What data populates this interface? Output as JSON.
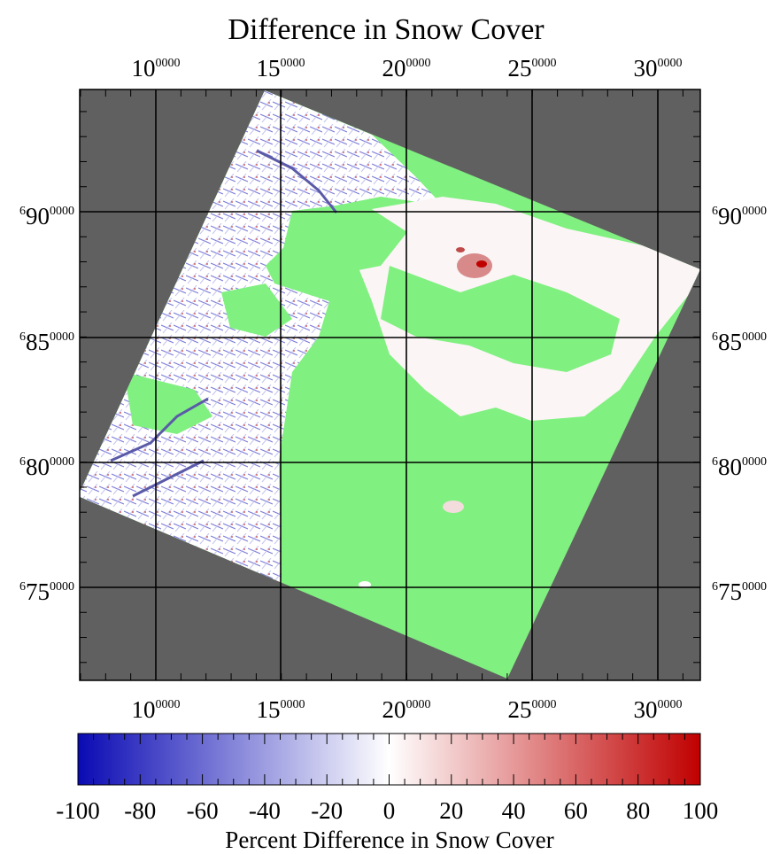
{
  "title": "Difference in Snow Cover",
  "x_ticks": [
    {
      "value": 100000,
      "main": "10",
      "exp": "0000"
    },
    {
      "value": 150000,
      "main": "15",
      "exp": "0000"
    },
    {
      "value": 200000,
      "main": "20",
      "exp": "0000"
    },
    {
      "value": 250000,
      "main": "25",
      "exp": "0000"
    },
    {
      "value": 300000,
      "main": "30",
      "exp": "0000"
    }
  ],
  "y_ticks": [
    {
      "value": 6900000,
      "pre": "6",
      "main": "90",
      "exp": "0000"
    },
    {
      "value": 6850000,
      "pre": "6",
      "main": "85",
      "exp": "0000"
    },
    {
      "value": 6800000,
      "pre": "6",
      "main": "80",
      "exp": "0000"
    },
    {
      "value": 6750000,
      "pre": "6",
      "main": "75",
      "exp": "0000"
    }
  ],
  "map": {
    "x_range": [
      84000,
      332000
    ],
    "y_range": [
      6713000,
      6948000
    ],
    "colors": {
      "nodata": "#606060",
      "nochange": "#80f080",
      "neutral": "#ffffff",
      "negative": "#0a0ab4",
      "positive": "#c00000",
      "grid": "#000000"
    }
  },
  "colorbar": {
    "title": "Percent Difference in Snow Cover",
    "min": -100,
    "max": 100,
    "labels": [
      "-100",
      "-80",
      "-60",
      "-40",
      "-20",
      "0",
      "20",
      "40",
      "60",
      "80",
      "100"
    ],
    "colors": [
      "#0a0ab4",
      "#ffffff",
      "#c00000"
    ]
  }
}
